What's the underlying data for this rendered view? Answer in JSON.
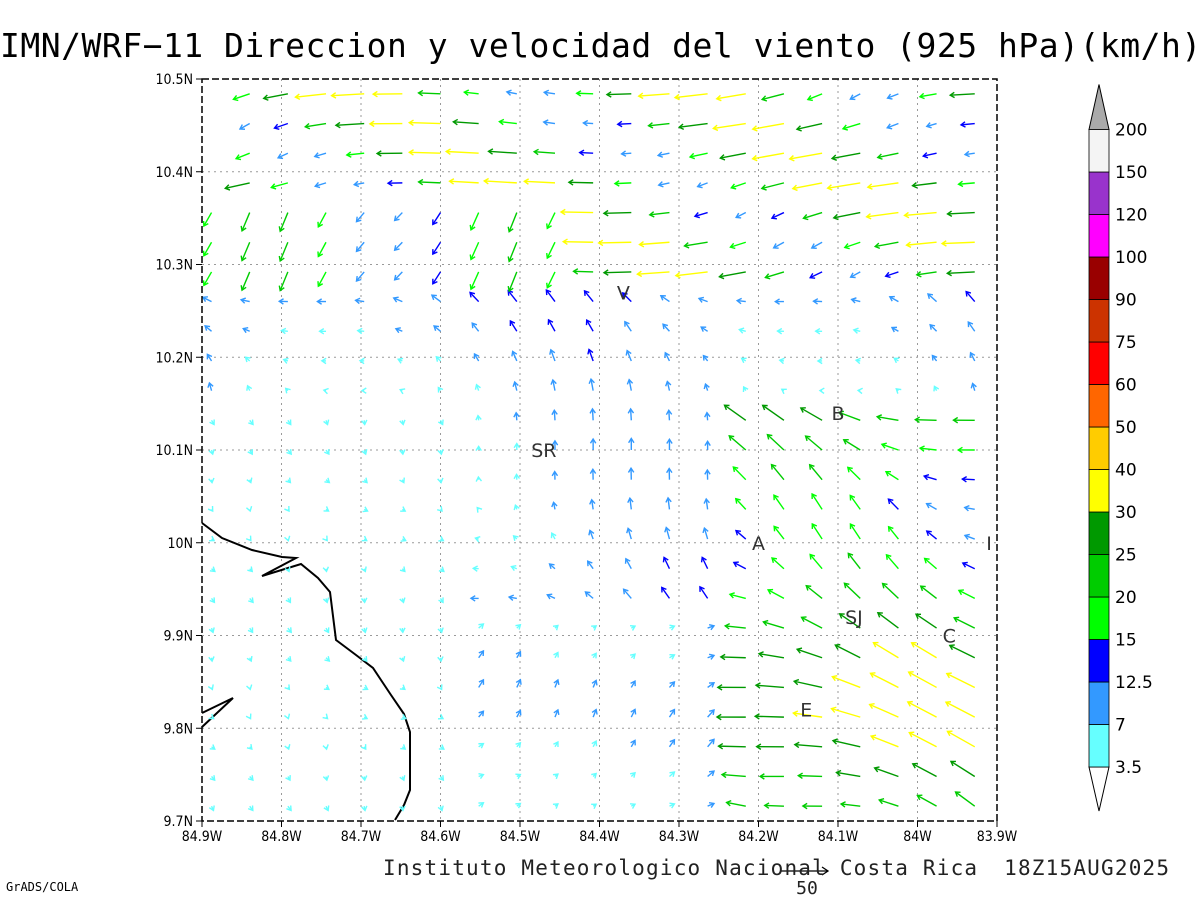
{
  "title": "IMN/WRF−11 Direccion y velocidad del viento (925 hPa)(km/h)",
  "institution": "Instituto Meteorologico Nacional Costa Rica",
  "valid_time": "18Z15AUG2025",
  "software": "GrADS/COLA",
  "reference_vector": {
    "label": "50",
    "value_kmh": 50
  },
  "map": {
    "lon_range": [
      -84.9,
      -83.9
    ],
    "lat_range": [
      9.7,
      10.5
    ],
    "x_ticks": [
      "84.9W",
      "84.8W",
      "84.7W",
      "84.6W",
      "84.5W",
      "84.4W",
      "84.3W",
      "84.2W",
      "84.1W",
      "84W",
      "83.9W"
    ],
    "y_ticks": [
      "10.5N",
      "10.4N",
      "10.3N",
      "10.2N",
      "10.1N",
      "10N",
      "9.9N",
      "9.8N",
      "9.7N"
    ],
    "grid": "dotted",
    "places": [
      {
        "label": "V",
        "lon": -84.37,
        "lat": 10.27
      },
      {
        "label": "SR",
        "lon": -84.47,
        "lat": 10.1
      },
      {
        "label": "B",
        "lon": -84.1,
        "lat": 10.14
      },
      {
        "label": "A",
        "lon": -84.2,
        "lat": 10.0
      },
      {
        "label": "I",
        "lon": -83.91,
        "lat": 10.0
      },
      {
        "label": "SJ",
        "lon": -84.08,
        "lat": 9.92
      },
      {
        "label": "C",
        "lon": -83.96,
        "lat": 9.9
      },
      {
        "label": "E",
        "lon": -84.14,
        "lat": 9.82
      }
    ]
  },
  "legend": {
    "labels": [
      "3.5",
      "7",
      "12.5",
      "15",
      "20",
      "25",
      "30",
      "40",
      "50",
      "60",
      "75",
      "90",
      "100",
      "120",
      "150",
      "200"
    ],
    "colors": [
      "#66ffff",
      "#3399ff",
      "#0000ff",
      "#00ff00",
      "#00cc00",
      "#009900",
      "#ffff00",
      "#ffcc00",
      "#ff6600",
      "#ff0000",
      "#cc3300",
      "#990000",
      "#ff00ff",
      "#9933cc",
      "#f4f4f4"
    ],
    "overflow_color": "#aaaaaa"
  }
}
